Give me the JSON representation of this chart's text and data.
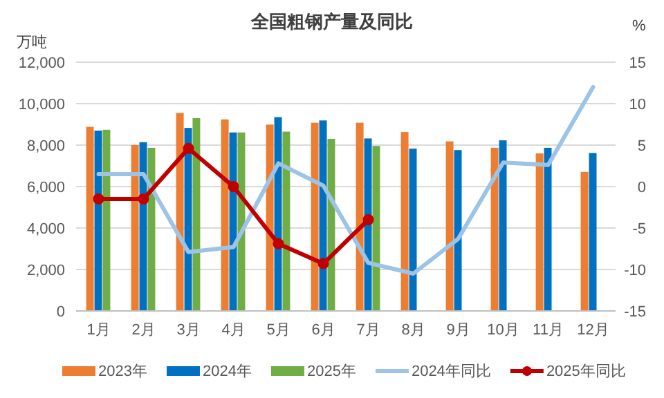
{
  "chart_data": {
    "type": "bar",
    "title": "全国粗钢产量及同比",
    "ylabel": "万吨",
    "y2label": "%",
    "categories": [
      "1月",
      "2月",
      "3月",
      "4月",
      "5月",
      "6月",
      "7月",
      "8月",
      "9月",
      "10月",
      "11月",
      "12月"
    ],
    "series": [
      {
        "name": "2023年",
        "color": "#ed7d31",
        "values": [
          8880,
          8000,
          9550,
          9240,
          8990,
          9080,
          9080,
          8630,
          8180,
          7870,
          7600,
          6710
        ]
      },
      {
        "name": "2024年",
        "color": "#0070c0",
        "values": [
          8700,
          8140,
          8830,
          8610,
          9350,
          9190,
          8320,
          7830,
          7760,
          8230,
          7870,
          7620
        ]
      },
      {
        "name": "2025年",
        "color": "#70ad47",
        "values": [
          8740,
          7870,
          9300,
          8610,
          8650,
          8300,
          7960,
          null,
          null,
          null,
          null,
          null
        ]
      },
      {
        "name": "2024年同比",
        "type": "line",
        "axis": "y2",
        "marker": "none",
        "color": "#9dc3e6",
        "values": [
          1.5,
          1.5,
          -7.9,
          -7.3,
          2.8,
          0.1,
          -9.2,
          -10.5,
          -6.3,
          2.9,
          2.6,
          12.0
        ]
      },
      {
        "name": "2025年同比",
        "type": "line",
        "axis": "y2",
        "marker": "circle",
        "color": "#c00000",
        "values": [
          -1.5,
          -1.5,
          4.6,
          0.0,
          -6.9,
          -9.3,
          -4.0,
          null,
          null,
          null,
          null,
          null
        ]
      }
    ],
    "ylim": [
      0,
      12000
    ],
    "yticks": [
      {
        "value": 0,
        "label": "0"
      },
      {
        "value": 2000,
        "label": "2,000"
      },
      {
        "value": 4000,
        "label": "4,000"
      },
      {
        "value": 6000,
        "label": "6,000"
      },
      {
        "value": 8000,
        "label": "8,000"
      },
      {
        "value": 10000,
        "label": "10,000"
      },
      {
        "value": 12000,
        "label": "12,000"
      }
    ],
    "y2lim": [
      -15,
      15
    ],
    "y2ticks": [
      -15,
      -10,
      -5,
      0,
      5,
      10,
      15
    ],
    "grid": "y",
    "legend": "bottom"
  }
}
